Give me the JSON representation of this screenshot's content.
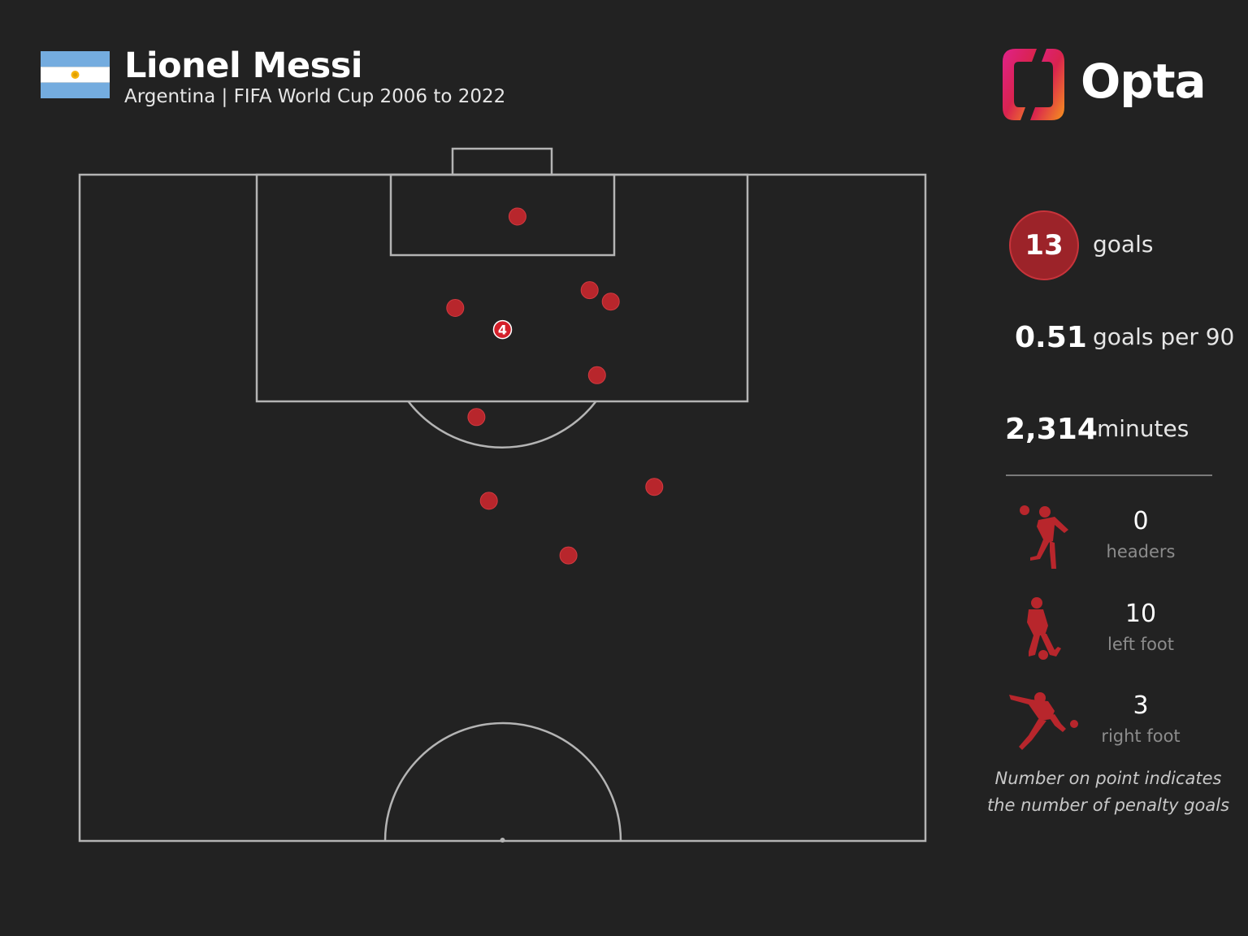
{
  "header": {
    "title": "Lionel Messi",
    "subtitle": "Argentina | FIFA World Cup 2006 to 2022"
  },
  "logo": {
    "text": "Opta"
  },
  "stats": {
    "goals_value": "13",
    "goals_label": "goals",
    "per90_value": "0.51",
    "per90_label": "goals per 90",
    "minutes_value": "2,314",
    "minutes_label": "minutes"
  },
  "body_parts": [
    {
      "value": "0",
      "label": "headers",
      "icon": "heading-player-icon"
    },
    {
      "value": "10",
      "label": "left foot",
      "icon": "left-foot-player-icon"
    },
    {
      "value": "3",
      "label": "right foot",
      "icon": "right-foot-player-icon"
    }
  ],
  "note": {
    "line1": "Number on point indicates",
    "line2": "the number of penalty goals"
  },
  "colors": {
    "background": "#222222",
    "pitch_lines": "#b4b4b4",
    "goal_marker": "#b8262c",
    "penalty_marker": "#d4202a",
    "flag_blue": "#74acdf",
    "flag_sun": "#f6b40e"
  },
  "chart_data": {
    "type": "scatter",
    "description_units": "pitch metres (x across width 0-68 from left touchline, y distance from goal line)",
    "xlim": [
      0,
      68
    ],
    "ylim": [
      0,
      52.5
    ],
    "points": [
      {
        "x": 35.2,
        "y": 3.3,
        "count": 1
      },
      {
        "x": 30.2,
        "y": 10.5,
        "count": 1
      },
      {
        "x": 34.0,
        "y": 12.2,
        "count": 4,
        "label": "4"
      },
      {
        "x": 41.0,
        "y": 9.1,
        "count": 1
      },
      {
        "x": 42.7,
        "y": 10.0,
        "count": 1
      },
      {
        "x": 41.6,
        "y": 15.8,
        "count": 1
      },
      {
        "x": 31.9,
        "y": 19.1,
        "count": 1
      },
      {
        "x": 32.9,
        "y": 25.7,
        "count": 1
      },
      {
        "x": 46.2,
        "y": 24.6,
        "count": 1
      },
      {
        "x": 39.3,
        "y": 30.0,
        "count": 1
      }
    ]
  }
}
